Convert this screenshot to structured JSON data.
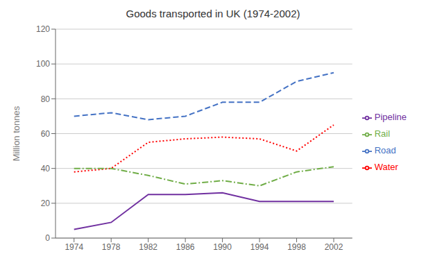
{
  "chart_data": {
    "type": "line",
    "title": "Goods transported in UK (1974-2002)",
    "ylabel": "Million tonnes",
    "x": [
      1974,
      1978,
      1982,
      1986,
      1990,
      1994,
      1998,
      2002
    ],
    "xlim": [
      1972,
      2004
    ],
    "xticks": [
      1974,
      1978,
      1982,
      1986,
      1990,
      1994,
      1998,
      2002
    ],
    "ylim": [
      0,
      120
    ],
    "yticks": [
      0,
      20,
      40,
      60,
      80,
      100,
      120
    ],
    "grid": "y",
    "legend": "right",
    "series": [
      {
        "name": "Road",
        "color": "#4472C4",
        "line_style": "dashed",
        "values": [
          70,
          72,
          68,
          70,
          78,
          78,
          90,
          95
        ]
      },
      {
        "name": "Water",
        "color": "#FF0000",
        "line_style": "dotted",
        "values": [
          38,
          40,
          55,
          57,
          58,
          57,
          50,
          65
        ]
      },
      {
        "name": "Rail",
        "color": "#70AD47",
        "line_style": "dashdot",
        "values": [
          40,
          40,
          36,
          31,
          33,
          30,
          38,
          41
        ]
      },
      {
        "name": "Pipeline",
        "color": "#7030A0",
        "line_style": "solid",
        "values": [
          5,
          9,
          25,
          25,
          26,
          21,
          21,
          21
        ]
      }
    ]
  }
}
